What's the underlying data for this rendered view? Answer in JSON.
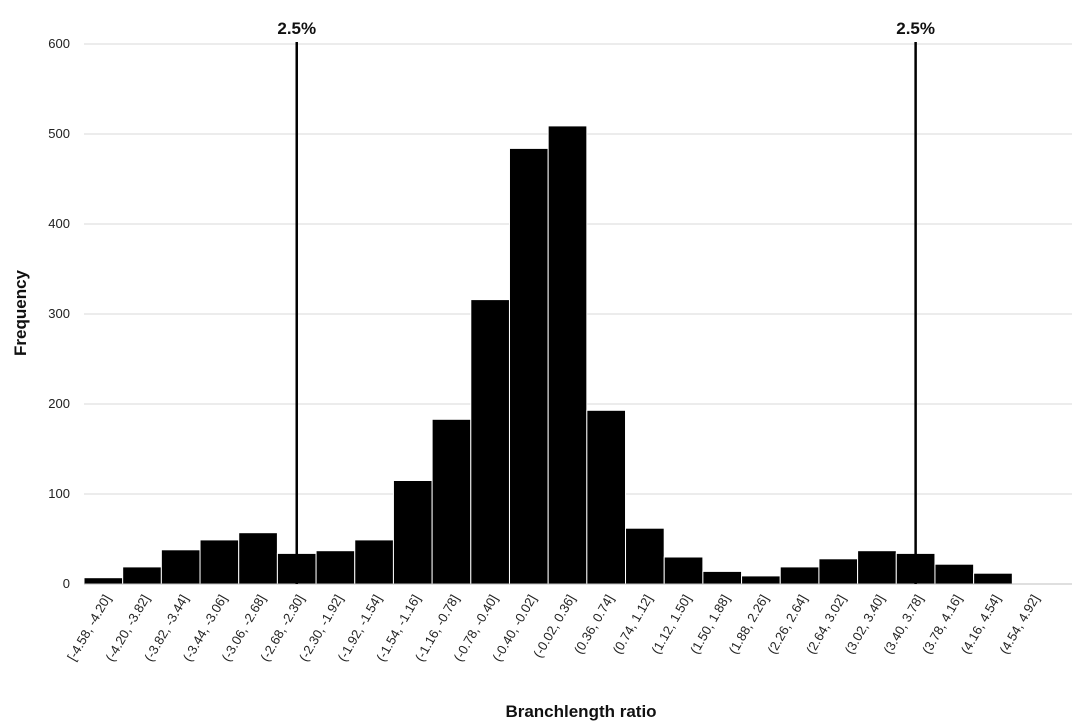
{
  "chart_data": {
    "type": "bar",
    "xlabel": "Branchlength ratio",
    "ylabel": "Frequency",
    "ylim": [
      0,
      600
    ],
    "yticks": [
      0,
      100,
      200,
      300,
      400,
      500,
      600
    ],
    "grid": true,
    "legend": "none",
    "bar_color": "#000000",
    "categories": [
      "[-4.58, -4.20]",
      "(-4.20, -3.82]",
      "(-3.82, -3.44]",
      "(-3.44, -3.06]",
      "(-3.06, -2.68]",
      "(-2.68, -2.30]",
      "(-2.30, -1.92]",
      "(-1.92, -1.54]",
      "(-1.54, -1.16]",
      "(-1.16, -0.78]",
      "(-0.78, -0.40]",
      "(-0.40, -0.02]",
      "(-0.02, 0.36]",
      "(0.36, 0.74]",
      "(0.74, 1.12]",
      "(1.12, 1.50]",
      "(1.50, 1.88]",
      "(1.88, 2.26]",
      "(2.26, 2.64]",
      "(2.64, 3.02]",
      "(3.02, 3.40]",
      "(3.40, 3.78]",
      "(3.78, 4.16]",
      "(4.16, 4.54]",
      "(4.54, 4.92]"
    ],
    "values": [
      7,
      19,
      38,
      49,
      57,
      34,
      37,
      49,
      115,
      183,
      316,
      484,
      509,
      193,
      62,
      30,
      14,
      9,
      19,
      28,
      37,
      34,
      22,
      12,
      0
    ],
    "markers": [
      {
        "label": "2.5%",
        "category_index": 5
      },
      {
        "label": "2.5%",
        "category_index": 21
      }
    ]
  }
}
